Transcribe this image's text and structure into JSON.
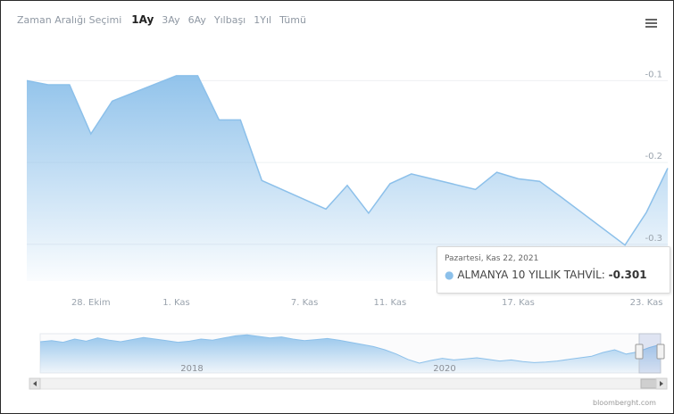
{
  "range_selector": {
    "label": "Zaman Aralığı Seçimi",
    "buttons": [
      "1Ay",
      "3Ay",
      "6Ay",
      "Yılbaşı",
      "1Yıl",
      "Tümü"
    ],
    "selected": "1Ay"
  },
  "tooltip": {
    "date": "Pazartesi, Kas 22, 2021",
    "series": "ALMANYA 10 YILLIK TAHVİL",
    "value": "-0.301"
  },
  "navigator": {
    "year_labels": [
      "2018",
      "2020"
    ]
  },
  "credit": "bloomberght.com",
  "chart_data": {
    "type": "area",
    "x": [
      "2021-10-25",
      "2021-10-26",
      "2021-10-27",
      "2021-10-28",
      "2021-10-29",
      "2021-11-01",
      "2021-11-02",
      "2021-11-03",
      "2021-11-04",
      "2021-11-05",
      "2021-11-08",
      "2021-11-09",
      "2021-11-10",
      "2021-11-11",
      "2021-11-12",
      "2021-11-15",
      "2021-11-16",
      "2021-11-17",
      "2021-11-18",
      "2021-11-19",
      "2021-11-22",
      "2021-11-23",
      "2021-11-24"
    ],
    "series": [
      {
        "name": "ALMANYA 10 YILLIK TAHVİL",
        "values": [
          -0.1,
          -0.105,
          -0.105,
          -0.165,
          -0.125,
          -0.094,
          -0.094,
          -0.148,
          -0.148,
          -0.222,
          -0.257,
          -0.228,
          -0.262,
          -0.226,
          -0.214,
          -0.233,
          -0.212,
          -0.22,
          -0.223,
          -0.242,
          -0.301,
          -0.261,
          -0.207
        ]
      }
    ],
    "x_ticks": [
      "28. Ekim",
      "1. Kas",
      "7. Kas",
      "11. Kas",
      "17. Kas",
      "23. Kas"
    ],
    "y_ticks": [
      "-0.1",
      "-0.2",
      "-0.3"
    ],
    "y_tick_values": [
      -0.1,
      -0.2,
      -0.3
    ],
    "ylim": [
      -0.345,
      -0.045
    ],
    "color": "#8cc0ea",
    "grid": true,
    "navigator": {
      "values": [
        0.45,
        0.47,
        0.44,
        0.5,
        0.46,
        0.52,
        0.48,
        0.45,
        0.49,
        0.53,
        0.5,
        0.47,
        0.44,
        0.46,
        0.5,
        0.48,
        0.52,
        0.56,
        0.58,
        0.55,
        0.52,
        0.54,
        0.5,
        0.47,
        0.49,
        0.51,
        0.48,
        0.44,
        0.4,
        0.36,
        0.3,
        0.22,
        0.12,
        0.05,
        0.1,
        0.14,
        0.11,
        0.13,
        0.15,
        0.12,
        0.09,
        0.11,
        0.08,
        0.06,
        0.07,
        0.09,
        0.12,
        0.15,
        0.18,
        0.25,
        0.3,
        0.22,
        0.26,
        0.34,
        0.4
      ]
    }
  }
}
